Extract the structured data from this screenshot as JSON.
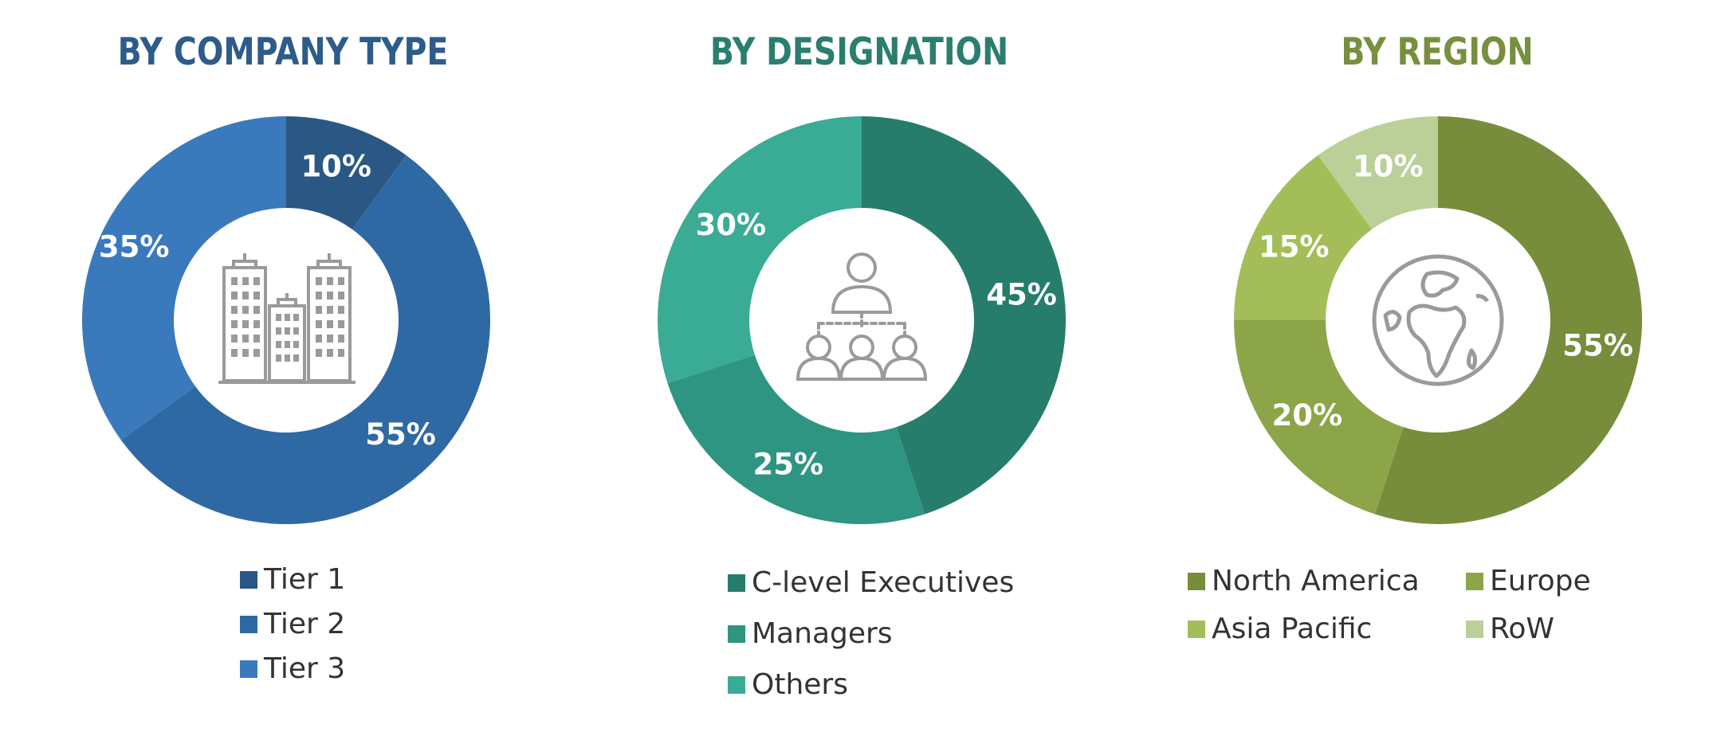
{
  "chart_data": [
    {
      "type": "pie",
      "title": "BY COMPANY TYPE",
      "title_color": "#2E5C8A",
      "categories": [
        "Tier 1",
        "Tier 2",
        "Tier 3"
      ],
      "values": [
        10,
        55,
        35
      ],
      "labels": [
        "10%",
        "55%",
        "35%"
      ],
      "colors": [
        "#2A5783",
        "#2F69A3",
        "#3A7ABC"
      ],
      "legend": "bottom",
      "center_icon": "buildings-icon"
    },
    {
      "type": "pie",
      "title": "BY DESIGNATION",
      "title_color": "#2B7E6E",
      "categories": [
        "C-level Executives",
        "Managers",
        "Others"
      ],
      "values": [
        45,
        25,
        30
      ],
      "labels": [
        "45%",
        "25%",
        "30%"
      ],
      "colors": [
        "#267D6C",
        "#2E9582",
        "#3AAB95"
      ],
      "legend": "bottom",
      "center_icon": "org-hierarchy-icon"
    },
    {
      "type": "pie",
      "title": "BY REGION",
      "title_color": "#779040",
      "categories": [
        "North America",
        "Europe",
        "Asia Pacific",
        "RoW"
      ],
      "values": [
        55,
        20,
        15,
        10
      ],
      "labels": [
        "55%",
        "20%",
        "15%",
        "10%"
      ],
      "colors": [
        "#778D3C",
        "#8CA548",
        "#A3BE58",
        "#BBCF98"
      ],
      "legend": "bottom",
      "center_icon": "globe-icon"
    }
  ]
}
